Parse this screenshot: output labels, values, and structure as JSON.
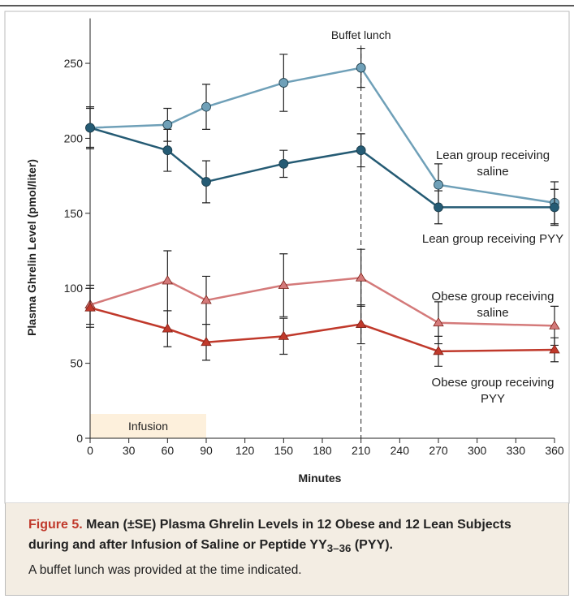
{
  "chart_data": {
    "type": "line",
    "x_label": "Minutes",
    "y_label": "Plasma Ghrelin Level (pmol/liter)",
    "x": [
      0,
      60,
      90,
      150,
      210,
      270,
      360
    ],
    "xlim": [
      0,
      360
    ],
    "xticks": [
      0,
      30,
      60,
      90,
      120,
      150,
      180,
      210,
      240,
      270,
      300,
      330,
      360
    ],
    "ylim": [
      0,
      280
    ],
    "yticks": [
      0,
      50,
      100,
      150,
      200,
      250
    ],
    "series": [
      {
        "name": "Lean group receiving saline",
        "color": "#6fa0b8",
        "marker": "circle",
        "values": [
          207,
          209,
          221,
          237,
          247,
          169,
          157
        ],
        "errors": [
          14,
          11,
          15,
          19,
          13,
          14,
          14
        ]
      },
      {
        "name": "Lean group receiving PYY",
        "color": "#255b74",
        "marker": "circle",
        "values": [
          207,
          192,
          171,
          183,
          192,
          154,
          154
        ],
        "errors": [
          13,
          14,
          14,
          9,
          11,
          11,
          12
        ]
      },
      {
        "name": "Obese group receiving saline",
        "color": "#d47a7a",
        "marker": "triangle",
        "values": [
          89,
          105,
          92,
          102,
          107,
          77,
          75
        ],
        "errors": [
          13,
          20,
          16,
          21,
          19,
          14,
          13
        ]
      },
      {
        "name": "Obese group receiving PYY",
        "color": "#c0392b",
        "marker": "triangle",
        "values": [
          87,
          73,
          64,
          68,
          76,
          58,
          59
        ],
        "errors": [
          13,
          12,
          12,
          12,
          13,
          10,
          8
        ]
      }
    ],
    "vline": {
      "x": 210,
      "label": "Buffet lunch"
    },
    "shaded_region": {
      "label": "Infusion",
      "x": [
        0,
        90
      ],
      "color": "#fdf0dc"
    }
  },
  "caption": {
    "figure_label": "Figure 5.",
    "title_before": "Mean (±SE) Plasma Ghrelin Levels in 12 Obese and 12 Lean Subjects during and after Infusion of Saline or Peptide YY",
    "title_subscript": "3–36",
    "title_after": " (PYY).",
    "text": "A buffet lunch was provided at the time indicated."
  }
}
